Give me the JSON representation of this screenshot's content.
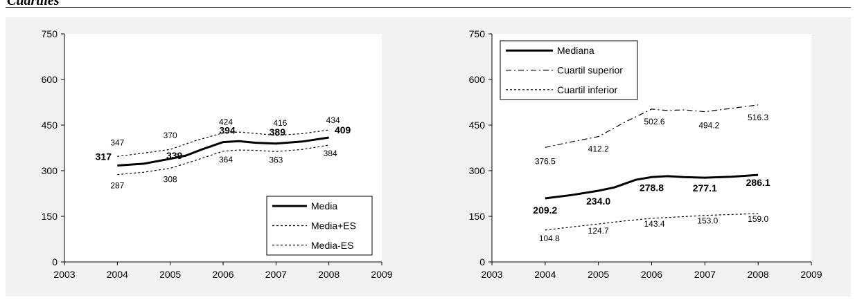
{
  "header": {
    "title": "Cuartiles"
  },
  "chart_data": [
    {
      "type": "line",
      "xlim": [
        2003,
        2009
      ],
      "ylim": [
        0,
        750
      ],
      "x_ticks": [
        "2003",
        "2004",
        "2005",
        "2006",
        "2007",
        "2008",
        "2009"
      ],
      "y_ticks": [
        "0",
        "150",
        "300",
        "450",
        "600",
        "750"
      ],
      "legend_position": "bottom-right",
      "series": [
        {
          "name": "Media",
          "style": "solid",
          "x": [
            2004,
            2004.5,
            2005,
            2005.3,
            2005.6,
            2006,
            2006.3,
            2006.6,
            2007,
            2007.5,
            2008
          ],
          "y": [
            317,
            323,
            339,
            350,
            370,
            394,
            397,
            392,
            389,
            396,
            409
          ],
          "labels": [
            {
              "x": 2004,
              "y": 317,
              "text": "317"
            },
            {
              "x": 2005,
              "y": 339,
              "text": "339"
            },
            {
              "x": 2006,
              "y": 394,
              "text": "394"
            },
            {
              "x": 2007,
              "y": 389,
              "text": "389"
            },
            {
              "x": 2008,
              "y": 409,
              "text": "409"
            }
          ]
        },
        {
          "name": "Media+ES",
          "style": "dotted",
          "x": [
            2004,
            2004.5,
            2005,
            2005.5,
            2006,
            2006.3,
            2006.6,
            2007,
            2007.5,
            2008
          ],
          "y": [
            347,
            358,
            370,
            400,
            424,
            427,
            423,
            416,
            422,
            434
          ],
          "labels": [
            {
              "x": 2004,
              "y": 347,
              "text": "347"
            },
            {
              "x": 2005,
              "y": 370,
              "text": "370"
            },
            {
              "x": 2006,
              "y": 424,
              "text": "424"
            },
            {
              "x": 2007,
              "y": 416,
              "text": "416"
            },
            {
              "x": 2008,
              "y": 434,
              "text": "434"
            }
          ]
        },
        {
          "name": "Media-ES",
          "style": "dotted",
          "x": [
            2004,
            2004.5,
            2005,
            2005.5,
            2006,
            2006.3,
            2006.6,
            2007,
            2007.5,
            2008
          ],
          "y": [
            287,
            295,
            308,
            335,
            364,
            368,
            367,
            363,
            370,
            384
          ],
          "labels": [
            {
              "x": 2004,
              "y": 287,
              "text": "287"
            },
            {
              "x": 2005,
              "y": 308,
              "text": "308"
            },
            {
              "x": 2006,
              "y": 364,
              "text": "364"
            },
            {
              "x": 2007,
              "y": 363,
              "text": "363"
            },
            {
              "x": 2008,
              "y": 384,
              "text": "384"
            }
          ]
        }
      ]
    },
    {
      "type": "line",
      "xlim": [
        2003,
        2009
      ],
      "ylim": [
        0,
        750
      ],
      "x_ticks": [
        "2003",
        "2004",
        "2005",
        "2006",
        "2007",
        "2008",
        "2009"
      ],
      "y_ticks": [
        "0",
        "150",
        "300",
        "450",
        "600",
        "750"
      ],
      "legend_position": "top-left",
      "series": [
        {
          "name": "Mediana",
          "style": "solid",
          "x": [
            2004,
            2004.5,
            2005,
            2005.3,
            2005.7,
            2006,
            2006.3,
            2006.6,
            2007,
            2007.5,
            2008
          ],
          "y": [
            209.2,
            220,
            234.0,
            245,
            270,
            278.8,
            282,
            279,
            277.1,
            280,
            286.1
          ],
          "labels": [
            {
              "x": 2004,
              "y": 209.2,
              "text": "209.2"
            },
            {
              "x": 2005,
              "y": 234.0,
              "text": "234.0"
            },
            {
              "x": 2006,
              "y": 278.8,
              "text": "278.8"
            },
            {
              "x": 2007,
              "y": 277.1,
              "text": "277.1"
            },
            {
              "x": 2008,
              "y": 286.1,
              "text": "286.1"
            }
          ]
        },
        {
          "name": "Cuartil superior",
          "style": "dashdot",
          "x": [
            2004,
            2004.5,
            2005,
            2005.5,
            2006,
            2006.3,
            2006.6,
            2007,
            2007.5,
            2008
          ],
          "y": [
            376.5,
            395,
            412.2,
            460,
            502.6,
            498,
            500,
            494.2,
            505,
            516.3
          ],
          "labels": [
            {
              "x": 2004,
              "y": 376.5,
              "text": "376.5"
            },
            {
              "x": 2005,
              "y": 412.2,
              "text": "412.2"
            },
            {
              "x": 2006,
              "y": 502.6,
              "text": "502.6"
            },
            {
              "x": 2007,
              "y": 494.2,
              "text": "494.2"
            },
            {
              "x": 2008,
              "y": 516.3,
              "text": "516.3"
            }
          ]
        },
        {
          "name": "Cuartil inferior",
          "style": "dotted",
          "x": [
            2004,
            2004.5,
            2005,
            2005.5,
            2006,
            2006.5,
            2007,
            2007.5,
            2008
          ],
          "y": [
            104.8,
            115,
            124.7,
            135,
            143.4,
            148,
            153.0,
            156,
            159.0
          ],
          "labels": [
            {
              "x": 2004,
              "y": 104.8,
              "text": "104.8"
            },
            {
              "x": 2005,
              "y": 124.7,
              "text": "124.7"
            },
            {
              "x": 2006,
              "y": 143.4,
              "text": "143.4"
            },
            {
              "x": 2007,
              "y": 153.0,
              "text": "153.0"
            },
            {
              "x": 2008,
              "y": 159.0,
              "text": "159.0"
            }
          ]
        }
      ]
    }
  ]
}
